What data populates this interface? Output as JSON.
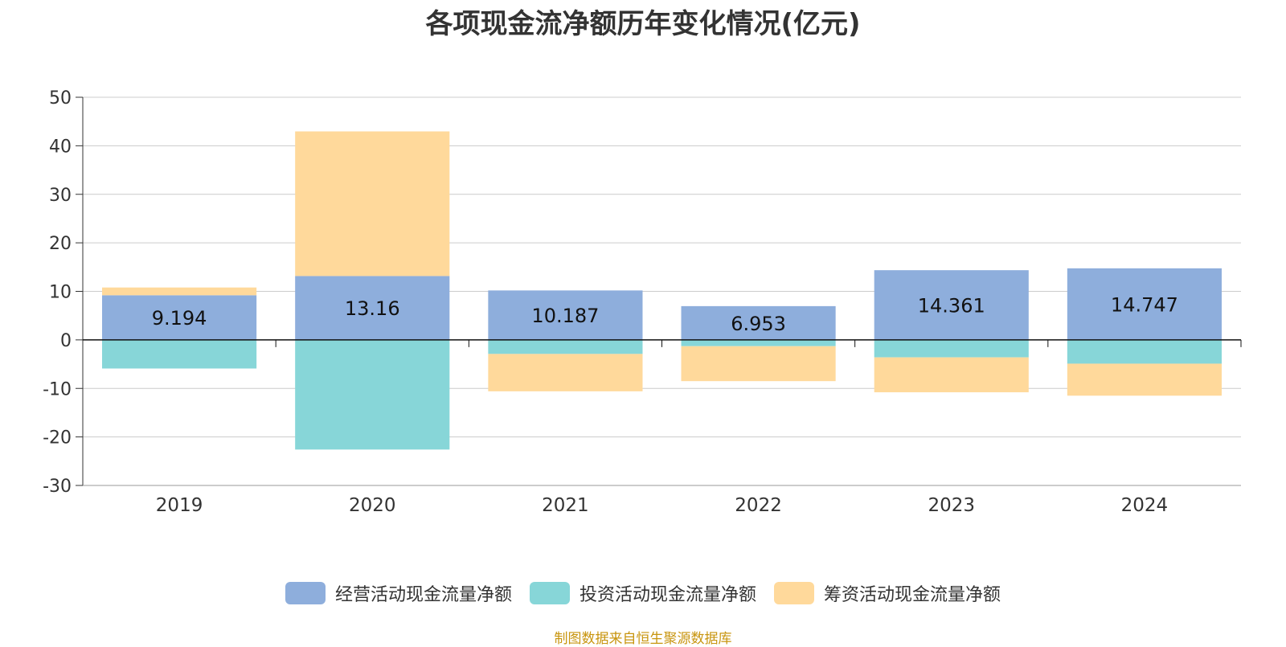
{
  "chart_data": {
    "type": "bar",
    "stacked": true,
    "title": "各项现金流净额历年变化情况(亿元)",
    "categories": [
      "2019",
      "2020",
      "2021",
      "2022",
      "2023",
      "2024"
    ],
    "series": [
      {
        "name": "经营活动现金流量净额",
        "color": "#8EAEDC",
        "values": [
          9.194,
          13.16,
          10.187,
          6.953,
          14.361,
          14.747
        ]
      },
      {
        "name": "投资活动现金流量净额",
        "color": "#87D6D8",
        "values": [
          -5.9,
          -22.6,
          -2.9,
          -1.3,
          -3.6,
          -4.9
        ]
      },
      {
        "name": "筹资活动现金流量净额",
        "color": "#FFD99B",
        "values": [
          1.6,
          29.8,
          -7.7,
          -7.2,
          -7.2,
          -6.6
        ]
      }
    ],
    "data_labels": [
      "9.194",
      "13.16",
      "10.187",
      "6.953",
      "14.361",
      "14.747"
    ],
    "ylim": [
      -30,
      50
    ],
    "yticks": [
      50,
      40,
      30,
      20,
      10,
      0,
      -10,
      -20,
      -30
    ],
    "grid": true,
    "legend_position": "bottom"
  },
  "source_note": "制图数据来自恒生聚源数据库"
}
